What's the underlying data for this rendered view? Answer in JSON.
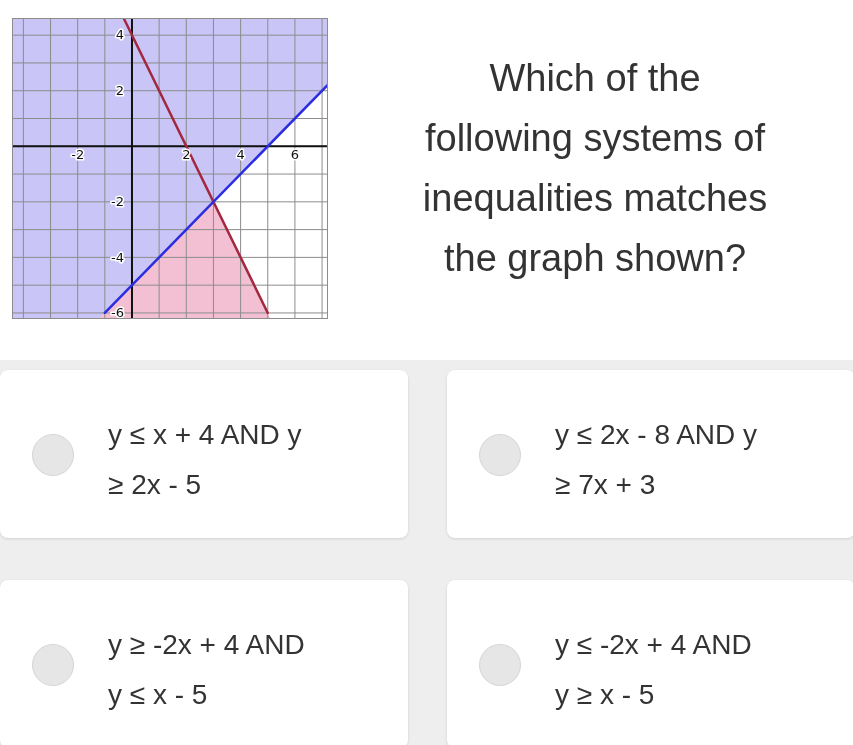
{
  "chart_data": {
    "type": "inequality_graph",
    "xlim": [
      -4.4,
      7.2
    ],
    "ylim": [
      -6.2,
      4.6
    ],
    "xticks": [
      -2,
      2,
      4,
      6
    ],
    "yticks": [
      -6,
      -4,
      -2,
      2,
      4
    ],
    "grid": true,
    "series": [
      {
        "type": "band",
        "color": "#f3c0d3",
        "x": [
          -4.4,
          7.2
        ],
        "low": [
          -6.2,
          -6.2
        ],
        "high": [
          12.8,
          -10.4
        ]
      },
      {
        "type": "band",
        "color": "#c9c5f6",
        "x": [
          -4.4,
          7.2
        ],
        "low": [
          -9.4,
          2.2
        ],
        "high": [
          4.6,
          4.6
        ]
      },
      {
        "type": "line",
        "color": "#a3283f",
        "x": [
          -0.3,
          5.0
        ],
        "values": [
          4.6,
          -6.0
        ]
      },
      {
        "type": "line",
        "color": "#2b2de0",
        "x": [
          -1.0,
          7.2
        ],
        "values": [
          -6.0,
          2.2
        ]
      }
    ]
  },
  "question_lines": [
    "Which of the",
    "following systems of",
    "inequalities matches",
    "the graph shown?"
  ],
  "options": [
    [
      "y ≤ x + 4 AND y",
      "≥ 2x - 5"
    ],
    [
      "y ≤ 2x - 8 AND y",
      "≥ 7x + 3"
    ],
    [
      "y ≥ -2x + 4 AND",
      "y ≤ x - 5"
    ],
    [
      "y ≤ -2x + 4 AND",
      "y ≥ x - 5"
    ]
  ]
}
